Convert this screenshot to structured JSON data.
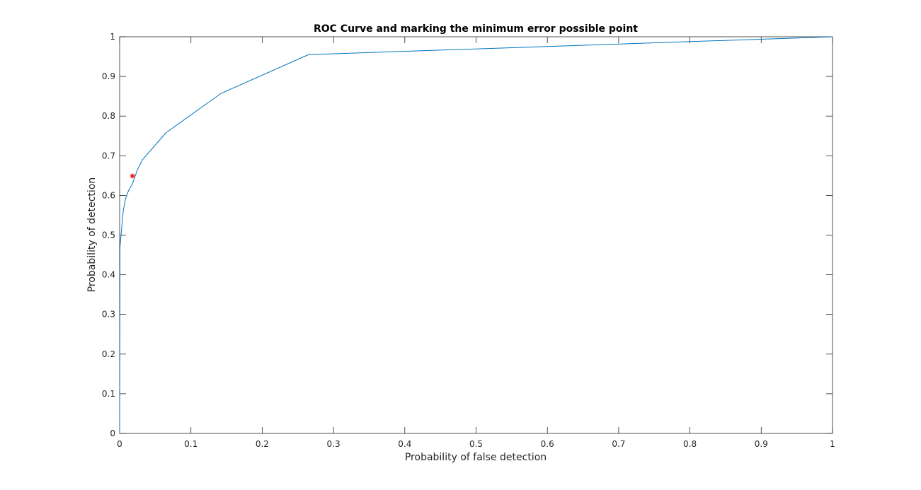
{
  "chart_data": {
    "type": "line",
    "title": "ROC Curve and marking the minimum error possible point",
    "xlabel": "Probability of false detection",
    "ylabel": "Probability of detection",
    "xlim": [
      0,
      1
    ],
    "ylim": [
      0,
      1
    ],
    "xticks": [
      "0",
      "0.1",
      "0.2",
      "0.3",
      "0.4",
      "0.5",
      "0.6",
      "0.7",
      "0.8",
      "0.9",
      "1"
    ],
    "yticks": [
      "0",
      "0.1",
      "0.2",
      "0.3",
      "0.4",
      "0.5",
      "0.6",
      "0.7",
      "0.8",
      "0.9",
      "1"
    ],
    "grid": false,
    "series": [
      {
        "color": "#0072bd",
        "x": [
          0,
          0.0005,
          0.001,
          0.002,
          0.003,
          0.005,
          0.008,
          0.012,
          0.018,
          0.025,
          0.032,
          0.065,
          0.142,
          0.265,
          1.0
        ],
        "y": [
          0,
          0.47,
          0.48,
          0.5,
          0.52,
          0.56,
          0.59,
          0.61,
          0.63,
          0.665,
          0.69,
          0.758,
          0.857,
          0.955,
          1.0
        ]
      }
    ],
    "marker_point": {
      "x": 0.018,
      "y": 0.649,
      "color": "#ff0000",
      "symbol": "*"
    }
  }
}
